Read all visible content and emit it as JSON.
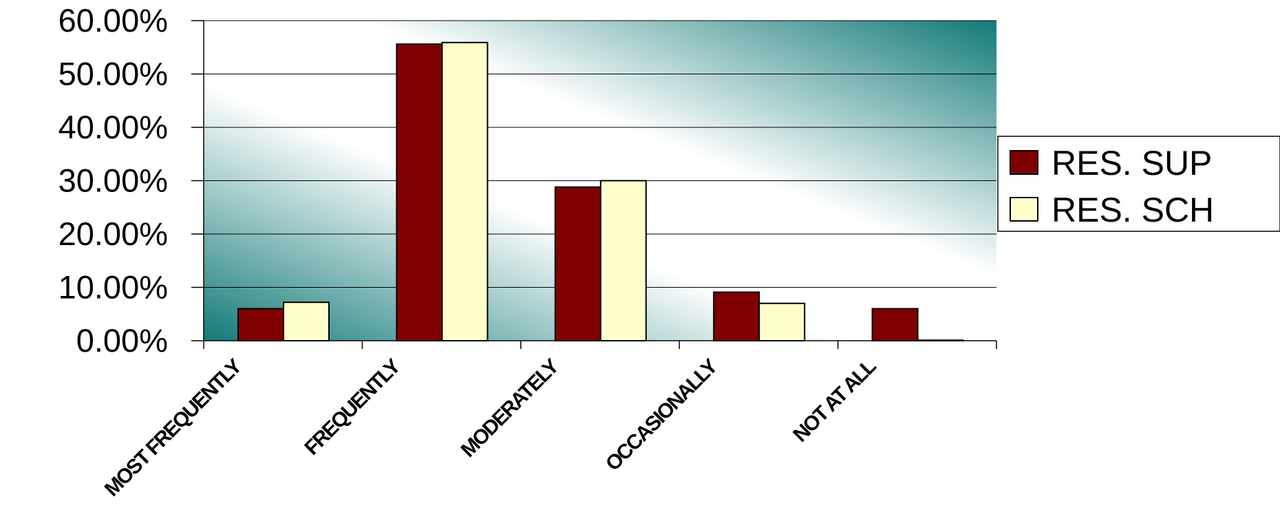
{
  "chart_data": {
    "type": "bar",
    "title": "",
    "xlabel": "",
    "ylabel": "",
    "categories": [
      "MOST FREQUENTLY",
      "FREQUENTLY",
      "MODERATELY",
      "OCCASIONALLY",
      "NOT AT ALL"
    ],
    "series": [
      {
        "name": "RES. SUP",
        "values": [
          6.0,
          55.6,
          28.8,
          9.1,
          6.0
        ],
        "color": "#800000"
      },
      {
        "name": "RES. SCH",
        "values": [
          7.2,
          55.9,
          30.0,
          7.0,
          0.1
        ],
        "color": "#ffffcc"
      }
    ],
    "ylim": [
      0,
      60
    ],
    "yticks": [
      "0.00%",
      "10.00%",
      "20.00%",
      "30.00%",
      "40.00%",
      "50.00%",
      "60.00%"
    ],
    "grid": true,
    "legend": "right",
    "background": {
      "dark": "#137a78",
      "light": "#ffffff"
    }
  }
}
